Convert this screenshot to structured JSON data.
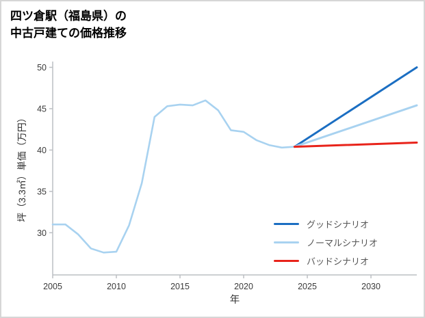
{
  "title": {
    "line1": "四ツ倉駅（福島県）の",
    "line2": "中古戸建ての価格推移"
  },
  "colors": {
    "good": "#1b6ec2",
    "normal": "#a8d2f0",
    "bad": "#e8231a",
    "spine": "#bcbfc3",
    "tick_text": "#3a3a3a"
  },
  "chart_data": {
    "type": "line",
    "title": "四ツ倉駅（福島県）の中古戸建ての価格推移",
    "xlabel": "年",
    "ylabel": "坪（3.3㎡）単価（万円）",
    "x_ticks": [
      2005,
      2010,
      2015,
      2020,
      2025,
      2030
    ],
    "y_ticks": [
      30,
      35,
      40,
      45,
      50
    ],
    "xlim": [
      2005,
      2033.6
    ],
    "ylim": [
      24.9,
      50.7
    ],
    "grid": false,
    "legend_position": "lower right",
    "series": [
      {
        "name": "",
        "role": "history",
        "color": "#a8d2f0",
        "width": 2.6,
        "in_legend": false,
        "x": [
          2005,
          2006,
          2007,
          2008,
          2009,
          2010,
          2011,
          2012,
          2013,
          2014,
          2015,
          2016,
          2017,
          2018,
          2019,
          2020,
          2021,
          2022,
          2023,
          2024
        ],
        "y": [
          31.0,
          31.0,
          29.8,
          28.1,
          27.6,
          27.7,
          30.9,
          36.0,
          44.0,
          45.3,
          45.5,
          45.4,
          46.0,
          44.8,
          42.4,
          42.2,
          41.2,
          40.6,
          40.3,
          40.4
        ]
      },
      {
        "name": "グッドシナリオ",
        "role": "good-scenario",
        "color": "#1b6ec2",
        "width": 3,
        "in_legend": true,
        "x": [
          2024,
          2033.6
        ],
        "y": [
          40.4,
          50.0
        ]
      },
      {
        "name": "ノーマルシナリオ",
        "role": "normal-scenario",
        "color": "#a8d2f0",
        "width": 3,
        "in_legend": true,
        "x": [
          2024,
          2033.6
        ],
        "y": [
          40.4,
          45.4
        ]
      },
      {
        "name": "バッドシナリオ",
        "role": "bad-scenario",
        "color": "#e8231a",
        "width": 3,
        "in_legend": true,
        "x": [
          2024,
          2033.6
        ],
        "y": [
          40.4,
          40.9
        ]
      }
    ]
  },
  "legend": {
    "items": [
      {
        "label": "グッドシナリオ",
        "color": "#1b6ec2"
      },
      {
        "label": "ノーマルシナリオ",
        "color": "#a8d2f0"
      },
      {
        "label": "バッドシナリオ",
        "color": "#e8231a"
      }
    ]
  }
}
